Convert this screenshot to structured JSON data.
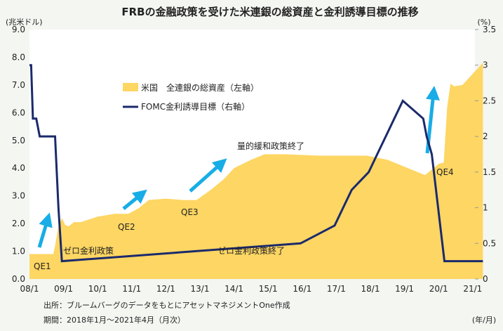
{
  "chart_data": {
    "type": "area+line",
    "title": "FRBの金融政策を受けた米連銀の総資産と金利誘導目標の推移",
    "ylabel_left": "(兆米ドル)",
    "ylabel_right": "(%)",
    "xlabel": "(年/月)",
    "ylim_left": [
      0,
      9
    ],
    "ylim_right": [
      0,
      3.5
    ],
    "xlim": [
      2008.0,
      2021.3
    ],
    "left_ticks": [
      "0.0",
      "1.0",
      "2.0",
      "3.0",
      "4.0",
      "5.0",
      "6.0",
      "7.0",
      "8.0",
      "9.0"
    ],
    "right_ticks": [
      "0",
      "0.5",
      "1",
      "1.5",
      "2",
      "2.5",
      "3",
      "3.5"
    ],
    "x_ticks": [
      "08/1",
      "09/1",
      "10/1",
      "11/1",
      "12/1",
      "13/1",
      "14/1",
      "15/1",
      "16/1",
      "17/1",
      "18/1",
      "19/1",
      "20/1",
      "21/1"
    ],
    "grid": false,
    "legend_position": "upper-left-inside",
    "series": [
      {
        "name": "米国　全連銀の総資産（左軸）",
        "type": "area",
        "axis": "left",
        "color": "#fdd663",
        "x": [
          2008.0,
          2008.7,
          2008.75,
          2008.85,
          2008.95,
          2009.05,
          2009.15,
          2009.3,
          2009.5,
          2009.75,
          2010.0,
          2010.5,
          2010.9,
          2011.2,
          2011.5,
          2012.0,
          2012.5,
          2012.9,
          2013.3,
          2013.7,
          2014.0,
          2014.5,
          2014.9,
          2015.5,
          2016.5,
          2017.5,
          2017.9,
          2018.5,
          2019.0,
          2019.6,
          2019.8,
          2020.0,
          2020.15,
          2020.25,
          2020.35,
          2020.45,
          2020.7,
          2021.0,
          2021.3
        ],
        "y": [
          0.9,
          0.9,
          1.2,
          1.9,
          2.2,
          1.95,
          1.9,
          2.05,
          2.05,
          2.15,
          2.25,
          2.35,
          2.35,
          2.55,
          2.85,
          2.9,
          2.85,
          2.85,
          3.2,
          3.6,
          4.0,
          4.3,
          4.5,
          4.5,
          4.45,
          4.45,
          4.45,
          4.3,
          4.05,
          3.75,
          3.95,
          4.15,
          4.2,
          6.2,
          7.05,
          6.95,
          7.0,
          7.4,
          7.8
        ]
      },
      {
        "name": "FOMC金利誘導目標（右軸）",
        "type": "step",
        "axis": "right",
        "color": "#1b2a6b",
        "x": [
          2008.0,
          2008.05,
          2008.1,
          2008.2,
          2008.3,
          2008.75,
          2008.85,
          2008.95,
          2015.95,
          2016.95,
          2017.2,
          2017.45,
          2017.95,
          2018.2,
          2018.45,
          2018.7,
          2018.95,
          2019.55,
          2019.65,
          2019.8,
          2020.17,
          2021.3
        ],
        "y": [
          3.0,
          3.0,
          2.25,
          2.25,
          2.0,
          2.0,
          1.0,
          0.25,
          0.5,
          0.75,
          1.0,
          1.25,
          1.5,
          1.75,
          2.0,
          2.25,
          2.5,
          2.25,
          2.0,
          1.75,
          0.25,
          0.25
        ]
      }
    ],
    "annotations": [
      "QE1",
      "QE2",
      "QE3",
      "QE4",
      "ゼロ金利政策",
      "ゼロ金利政策終了",
      "量的緩和政策終了"
    ],
    "arrow_color": "#18ade6"
  },
  "footer": {
    "source": "出所：ブルームバーグのデータをもとにアセットマネジメントOne作成",
    "period": "期間：2018年1月～2021年4月（月次）"
  }
}
